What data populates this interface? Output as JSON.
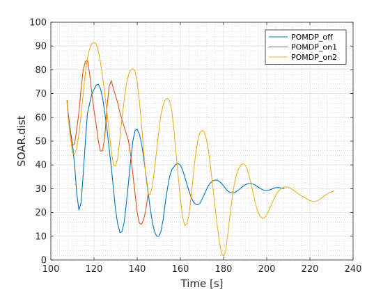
{
  "chart_data": {
    "type": "line",
    "title": "",
    "xlabel": "Time [s]",
    "ylabel": "SOAR.dist",
    "xlim": [
      100,
      240
    ],
    "ylim": [
      0,
      100
    ],
    "x_ticks": [
      100,
      120,
      140,
      160,
      180,
      200,
      220,
      240
    ],
    "y_ticks": [
      0,
      10,
      20,
      30,
      40,
      50,
      60,
      70,
      80,
      90,
      100
    ],
    "x_tick_labels": [
      "100",
      "120",
      "140",
      "160",
      "180",
      "200",
      "220",
      "240"
    ],
    "y_tick_labels": [
      "0",
      "10",
      "20",
      "30",
      "40",
      "50",
      "60",
      "70",
      "80",
      "90",
      "100"
    ],
    "grid": true,
    "minor_grid": true,
    "legend_position": "top-right",
    "series": [
      {
        "name": "POMDP_off",
        "color": "#0072BD",
        "points": [
          [
            107.5,
            67
          ],
          [
            108,
            62
          ],
          [
            109,
            55
          ],
          [
            110,
            49
          ],
          [
            111,
            40
          ],
          [
            112,
            28
          ],
          [
            113,
            21
          ],
          [
            114,
            24
          ],
          [
            115,
            36
          ],
          [
            116,
            50
          ],
          [
            117,
            62
          ],
          [
            119,
            70
          ],
          [
            121,
            73.5
          ],
          [
            122,
            74
          ],
          [
            123,
            72
          ],
          [
            124,
            68
          ],
          [
            125,
            62
          ],
          [
            126,
            55
          ],
          [
            127,
            47
          ],
          [
            128,
            39
          ],
          [
            129,
            30
          ],
          [
            130,
            21
          ],
          [
            131,
            15
          ],
          [
            132,
            11.5
          ],
          [
            133,
            12
          ],
          [
            134,
            16
          ],
          [
            135,
            24
          ],
          [
            136,
            33
          ],
          [
            137,
            42
          ],
          [
            138,
            50
          ],
          [
            139,
            54.5
          ],
          [
            140,
            55
          ],
          [
            141,
            53
          ],
          [
            142,
            49
          ],
          [
            143,
            43
          ],
          [
            144,
            36
          ],
          [
            145,
            29
          ],
          [
            146,
            22
          ],
          [
            147,
            16
          ],
          [
            148,
            12
          ],
          [
            149,
            10
          ],
          [
            150,
            10
          ],
          [
            151,
            12
          ],
          [
            152,
            17
          ],
          [
            153,
            24
          ],
          [
            154,
            30
          ],
          [
            155,
            35
          ],
          [
            156,
            38
          ],
          [
            158,
            40.3
          ],
          [
            159,
            40.5
          ],
          [
            160,
            40
          ],
          [
            161,
            38
          ],
          [
            162,
            35
          ],
          [
            163,
            32
          ],
          [
            164,
            29
          ],
          [
            165,
            26.5
          ],
          [
            166,
            24.5
          ],
          [
            167,
            23.5
          ],
          [
            168,
            23.2
          ],
          [
            169,
            23.8
          ],
          [
            170,
            25.5
          ],
          [
            171,
            27.5
          ],
          [
            172,
            29.5
          ],
          [
            173,
            31.3
          ],
          [
            174,
            32.5
          ],
          [
            175,
            33.3
          ],
          [
            176,
            33.6
          ],
          [
            177,
            33.6
          ],
          [
            178,
            33.1
          ],
          [
            179,
            32.3
          ],
          [
            180,
            31.2
          ],
          [
            181,
            30
          ],
          [
            182,
            29
          ],
          [
            183,
            28.4
          ],
          [
            184,
            28.2
          ],
          [
            185,
            28.3
          ],
          [
            186,
            28.8
          ],
          [
            187,
            29.5
          ],
          [
            188,
            30.3
          ],
          [
            189,
            31
          ],
          [
            190,
            31.6
          ],
          [
            191,
            32
          ],
          [
            192,
            32.2
          ],
          [
            193,
            32.1
          ],
          [
            194,
            31.8
          ],
          [
            195,
            31.3
          ],
          [
            196,
            30.7
          ],
          [
            197,
            30.1
          ],
          [
            198,
            29.6
          ],
          [
            199,
            29.3
          ],
          [
            200,
            29.2
          ],
          [
            201,
            29.4
          ],
          [
            202,
            29.7
          ],
          [
            203,
            30.1
          ],
          [
            204,
            30.4
          ],
          [
            205,
            30.5
          ],
          [
            206,
            30.4
          ],
          [
            207,
            30.2
          ],
          [
            208,
            30
          ]
        ]
      },
      {
        "name": "POMDP_on1",
        "color": "#D95319",
        "points": [
          [
            107.5,
            67
          ],
          [
            108,
            61
          ],
          [
            109,
            54
          ],
          [
            110,
            48
          ],
          [
            111,
            49
          ],
          [
            112,
            55
          ],
          [
            113,
            62
          ],
          [
            114,
            72
          ],
          [
            115,
            80
          ],
          [
            116,
            83.5
          ],
          [
            117,
            84
          ],
          [
            118,
            78
          ],
          [
            119,
            70
          ],
          [
            120,
            63
          ],
          [
            121,
            57
          ],
          [
            122,
            50
          ],
          [
            123,
            45.8
          ],
          [
            124,
            46
          ],
          [
            125,
            52
          ],
          [
            126,
            64
          ],
          [
            127,
            73
          ],
          [
            128,
            75.5
          ],
          [
            129,
            72
          ],
          [
            130,
            69
          ],
          [
            131,
            66
          ],
          [
            132,
            62
          ],
          [
            133,
            59
          ],
          [
            134,
            56
          ],
          [
            135,
            53
          ],
          [
            136,
            50
          ],
          [
            137,
            44
          ],
          [
            138,
            36
          ],
          [
            139,
            28
          ],
          [
            140,
            20
          ],
          [
            141,
            15.5
          ],
          [
            142,
            15
          ],
          [
            143,
            17
          ],
          [
            144,
            21
          ],
          [
            145,
            27.5
          ]
        ]
      },
      {
        "name": "POMDP_on2",
        "color": "#EDB120",
        "points": [
          [
            107.5,
            66
          ],
          [
            108,
            60
          ],
          [
            109,
            52
          ],
          [
            110,
            45
          ],
          [
            111,
            44.5
          ],
          [
            112,
            47
          ],
          [
            113,
            53
          ],
          [
            114,
            61
          ],
          [
            115,
            70
          ],
          [
            116,
            79
          ],
          [
            117,
            85
          ],
          [
            118,
            89
          ],
          [
            119,
            91
          ],
          [
            120,
            91.5
          ],
          [
            121,
            91
          ],
          [
            122,
            88
          ],
          [
            123,
            83
          ],
          [
            124,
            77
          ],
          [
            125,
            70
          ],
          [
            126,
            62
          ],
          [
            127,
            54
          ],
          [
            128,
            46
          ],
          [
            129,
            40
          ],
          [
            130,
            39.5
          ],
          [
            131,
            43
          ],
          [
            132,
            51
          ],
          [
            133,
            60
          ],
          [
            134,
            68
          ],
          [
            135,
            74
          ],
          [
            136,
            78
          ],
          [
            137,
            80
          ],
          [
            138,
            80.5
          ],
          [
            139,
            79.5
          ],
          [
            140,
            75
          ],
          [
            141,
            67
          ],
          [
            142,
            57
          ],
          [
            143,
            46
          ],
          [
            144,
            35
          ],
          [
            145,
            28
          ],
          [
            146,
            27.5
          ],
          [
            147,
            31
          ],
          [
            148,
            38
          ],
          [
            149,
            46
          ],
          [
            150,
            54
          ],
          [
            151,
            61
          ],
          [
            152,
            65
          ],
          [
            153,
            67.5
          ],
          [
            154,
            68
          ],
          [
            155,
            67
          ],
          [
            156,
            63
          ],
          [
            157,
            55
          ],
          [
            158,
            45
          ],
          [
            159,
            35
          ],
          [
            160,
            26
          ],
          [
            161,
            18
          ],
          [
            162,
            14.5
          ],
          [
            163,
            15
          ],
          [
            164,
            19
          ],
          [
            165,
            27
          ],
          [
            166,
            36
          ],
          [
            167,
            44
          ],
          [
            168,
            50
          ],
          [
            169,
            53.5
          ],
          [
            170,
            54.5
          ],
          [
            171,
            54
          ],
          [
            172,
            51
          ],
          [
            173,
            46
          ],
          [
            174,
            39
          ],
          [
            175,
            31
          ],
          [
            176,
            23
          ],
          [
            177,
            15
          ],
          [
            178,
            8
          ],
          [
            179,
            3
          ],
          [
            180,
            1.5
          ],
          [
            181,
            4
          ],
          [
            182,
            11
          ],
          [
            183,
            19
          ],
          [
            184,
            26
          ],
          [
            185,
            32
          ],
          [
            186,
            36
          ],
          [
            187,
            38.5
          ],
          [
            188,
            40
          ],
          [
            189,
            40.5
          ],
          [
            190,
            40
          ],
          [
            191,
            38
          ],
          [
            192,
            35
          ],
          [
            193,
            31
          ],
          [
            194,
            27
          ],
          [
            195,
            23
          ],
          [
            196,
            20
          ],
          [
            197,
            18.2
          ],
          [
            198,
            17.5
          ],
          [
            199,
            17.8
          ],
          [
            200,
            19
          ],
          [
            201,
            21
          ],
          [
            202,
            23
          ],
          [
            203,
            25
          ],
          [
            204,
            27
          ],
          [
            205,
            28.5
          ],
          [
            206,
            29.5
          ],
          [
            207,
            30.3
          ],
          [
            208,
            30.7
          ],
          [
            209,
            30.8
          ],
          [
            210,
            30.6
          ],
          [
            211,
            30.2
          ],
          [
            212,
            29.6
          ],
          [
            213,
            29
          ],
          [
            214,
            28.3
          ],
          [
            215,
            27.6
          ],
          [
            216,
            27
          ],
          [
            217,
            26.5
          ],
          [
            218,
            26
          ],
          [
            219,
            25.5
          ],
          [
            220,
            25
          ],
          [
            221,
            24.7
          ],
          [
            222,
            24.6
          ],
          [
            223,
            24.8
          ],
          [
            224,
            25.2
          ],
          [
            225,
            25.8
          ],
          [
            226,
            26.5
          ],
          [
            227,
            27.2
          ],
          [
            228,
            27.8
          ],
          [
            229,
            28.3
          ],
          [
            230,
            28.7
          ],
          [
            231,
            29
          ]
        ]
      }
    ]
  }
}
